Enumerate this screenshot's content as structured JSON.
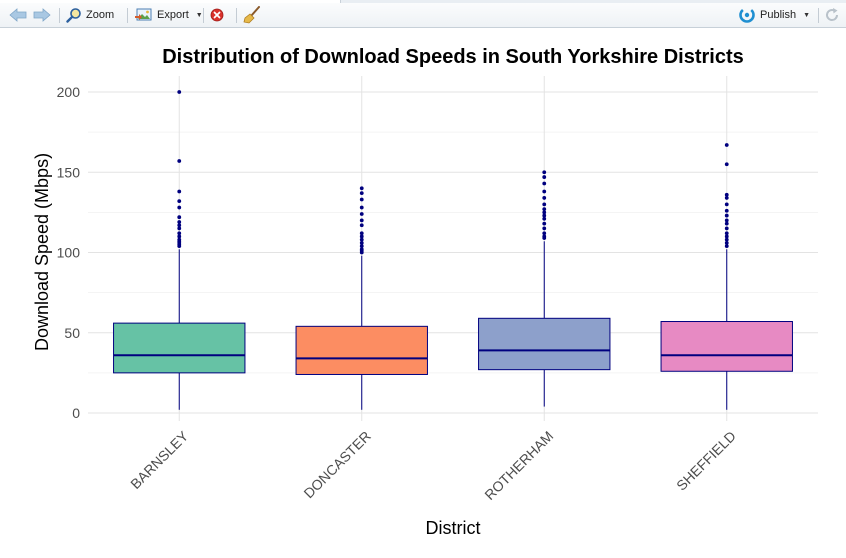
{
  "toolbar": {
    "zoom_label": "Zoom",
    "export_label": "Export",
    "publish_label": "Publish",
    "icons": {
      "back": "arrow-left-icon",
      "forward": "arrow-right-icon",
      "zoom": "magnifier-icon",
      "export": "image-export-icon",
      "remove": "remove-plot-icon",
      "clear": "broom-icon",
      "publish": "publish-icon",
      "refresh": "refresh-icon"
    }
  },
  "colors": {
    "BARNSLEY": "#66c2a5",
    "DONCASTER": "#fc8d62",
    "ROTHERHAM": "#8da0cb",
    "SHEFFIELD": "#e78ac3",
    "outline": "#00007f"
  },
  "chart_data": {
    "type": "boxplot",
    "title": "Distribution of Download Speeds in South Yorkshire Districts",
    "xlabel": "District",
    "ylabel": "Download Speed (Mbps)",
    "ylim": [
      -5,
      210
    ],
    "yticks": [
      0,
      50,
      100,
      150,
      200
    ],
    "grid": true,
    "legend": "none",
    "categories": [
      "BARNSLEY",
      "DONCASTER",
      "ROTHERHAM",
      "SHEFFIELD"
    ],
    "boxes": [
      {
        "name": "BARNSLEY",
        "min": 2,
        "q1": 25,
        "median": 36,
        "q3": 56,
        "max": 102,
        "outliers": [
          104,
          105,
          106,
          107,
          108,
          110,
          112,
          115,
          117,
          119,
          122,
          128,
          132,
          138,
          157,
          200
        ]
      },
      {
        "name": "DONCASTER",
        "min": 2,
        "q1": 24,
        "median": 34,
        "q3": 54,
        "max": 98,
        "outliers": [
          100,
          101,
          102,
          104,
          106,
          108,
          110,
          112,
          117,
          120,
          124,
          128,
          133,
          137,
          140
        ]
      },
      {
        "name": "ROTHERHAM",
        "min": 4,
        "q1": 27,
        "median": 39,
        "q3": 59,
        "max": 107,
        "outliers": [
          109,
          110,
          112,
          115,
          118,
          121,
          123,
          125,
          127,
          130,
          134,
          138,
          143,
          147,
          150
        ]
      },
      {
        "name": "SHEFFIELD",
        "min": 2,
        "q1": 26,
        "median": 36,
        "q3": 57,
        "max": 102,
        "outliers": [
          104,
          106,
          108,
          110,
          112,
          115,
          118,
          120,
          123,
          126,
          130,
          134,
          136,
          155,
          167
        ]
      }
    ]
  }
}
